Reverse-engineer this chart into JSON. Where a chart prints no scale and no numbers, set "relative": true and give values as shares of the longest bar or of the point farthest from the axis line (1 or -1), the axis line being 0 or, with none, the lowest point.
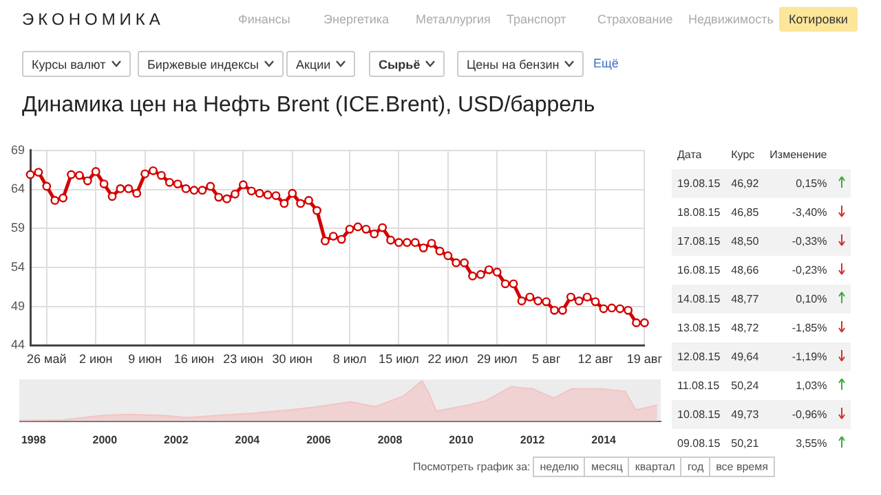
{
  "chart_data": [
    {
      "type": "line",
      "title": "Динамика цен на Нефть Brent (ICE.Brent), USD/баррель",
      "annotations": [
        "ЭКОНОМИКА",
        "Финансы",
        "Энергетика",
        "Металлургия",
        "Транспорт",
        "Страхование",
        "Недвижимость",
        "Котировки",
        "Курсы валют",
        "Биржевые индексы",
        "Акции",
        "Сырьё",
        "Цены на бензин",
        "Ещё"
      ],
      "categories": [
        null,
        null,
        "26 май",
        null,
        null,
        null,
        null,
        null,
        "2 июн",
        null,
        null,
        null,
        null,
        null,
        "9 июн",
        null,
        null,
        null,
        null,
        null,
        "16 июн",
        null,
        null,
        null,
        null,
        null,
        "23 июн",
        null,
        null,
        null,
        null,
        null,
        "30 июн",
        null,
        null,
        null,
        null,
        null,
        null,
        "8 июл",
        null,
        null,
        null,
        null,
        null,
        "15 июл",
        null,
        null,
        null,
        null,
        null,
        "22 июл",
        null,
        null,
        null,
        null,
        null,
        "29 июл",
        null,
        null,
        null,
        null,
        null,
        "5 авг",
        null,
        null,
        null,
        null,
        null,
        "12 авг",
        null,
        null,
        null,
        null,
        null,
        "19 авг"
      ],
      "series": [
        {
          "color": "#d40000",
          "values": [
            65.9,
            66.2,
            64.4,
            62.6,
            62.9,
            65.9,
            65.8,
            65.1,
            66.3,
            64.7,
            63.1,
            64.1,
            64.1,
            63.5,
            66.0,
            66.4,
            65.8,
            64.9,
            64.7,
            64.1,
            63.9,
            63.9,
            64.4,
            63.0,
            62.8,
            63.4,
            64.6,
            63.8,
            63.5,
            63.3,
            63.2,
            62.2,
            63.5,
            62.2,
            62.6,
            61.3,
            57.4,
            58.0,
            57.6,
            58.9,
            59.2,
            58.9,
            58.3,
            59.1,
            57.5,
            57.2,
            57.2,
            57.2,
            56.5,
            57.1,
            56.1,
            55.5,
            54.6,
            54.6,
            52.9,
            53.1,
            53.7,
            53.4,
            51.9,
            51.9,
            49.7,
            50.2,
            49.7,
            49.6,
            48.5,
            48.5,
            50.2,
            49.7,
            50.2,
            49.6,
            48.7,
            48.8,
            48.7,
            48.5,
            46.9,
            46.9
          ]
        }
      ],
      "ylim": [
        44,
        69
      ],
      "yticks": [
        44,
        49,
        54,
        59,
        64,
        69
      ],
      "grid": true,
      "legend": false,
      "marker": "circle"
    },
    {
      "type": "area",
      "relative": true,
      "tick_labels": "x",
      "annotations": [
        "Посмотреть график за:",
        "неделю",
        "месяц",
        "квартал",
        "год",
        "все время"
      ],
      "x": [
        1997.6,
        1998.8,
        1999.9,
        2000.7,
        2001.7,
        2002.3,
        2003.1,
        2004.2,
        2005.2,
        2006.0,
        2006.9,
        2007.6,
        2008.4,
        2008.9,
        2009.1,
        2009.3,
        2010.2,
        2010.7,
        2011.4,
        2012.0,
        2012.6,
        2013.1,
        2013.9,
        2014.6,
        2014.9,
        2015.5
      ],
      "series": [
        {
          "color": "#f2c4c4",
          "values": [
            0.02,
            0.03,
            0.14,
            0.17,
            0.14,
            0.09,
            0.14,
            0.2,
            0.28,
            0.36,
            0.48,
            0.36,
            0.63,
            1,
            0.68,
            0.25,
            0.4,
            0.51,
            0.85,
            0.8,
            0.57,
            0.8,
            0.8,
            0.74,
            0.28,
            0.4
          ]
        }
      ],
      "xlim": [
        1997.6,
        2015.6
      ],
      "xticks": [
        1998,
        2000,
        2002,
        2004,
        2006,
        2008,
        2010,
        2012,
        2014
      ],
      "legend": false
    },
    {
      "type": "other",
      "xlabel": "Дата",
      "categories": [
        "19.08.15",
        "18.08.15",
        "17.08.15",
        "16.08.15",
        "14.08.15",
        "13.08.15",
        "12.08.15",
        "11.08.15",
        "10.08.15",
        "09.08.15"
      ],
      "series": [
        {
          "name": "Курс",
          "values": [
            46.92,
            46.85,
            48.5,
            48.66,
            48.77,
            48.72,
            49.64,
            50.24,
            49.73,
            50.21
          ],
          "value_labels": [
            "46,92",
            "46,85",
            "48,50",
            "48,66",
            "48,77",
            "48,72",
            "49,64",
            "50,24",
            "49,73",
            "50,21"
          ]
        },
        {
          "name": "Изменение",
          "values": [
            0.15,
            -3.4,
            -0.33,
            -0.23,
            0.1,
            -1.85,
            -1.19,
            1.03,
            -0.96,
            3.55
          ],
          "value_labels": [
            "0,15%",
            "-3,40%",
            "-0,33%",
            "-0,23%",
            "0,10%",
            "-1,85%",
            "-1,19%",
            "1,03%",
            "-0,96%",
            "3,55%"
          ]
        }
      ]
    }
  ]
}
